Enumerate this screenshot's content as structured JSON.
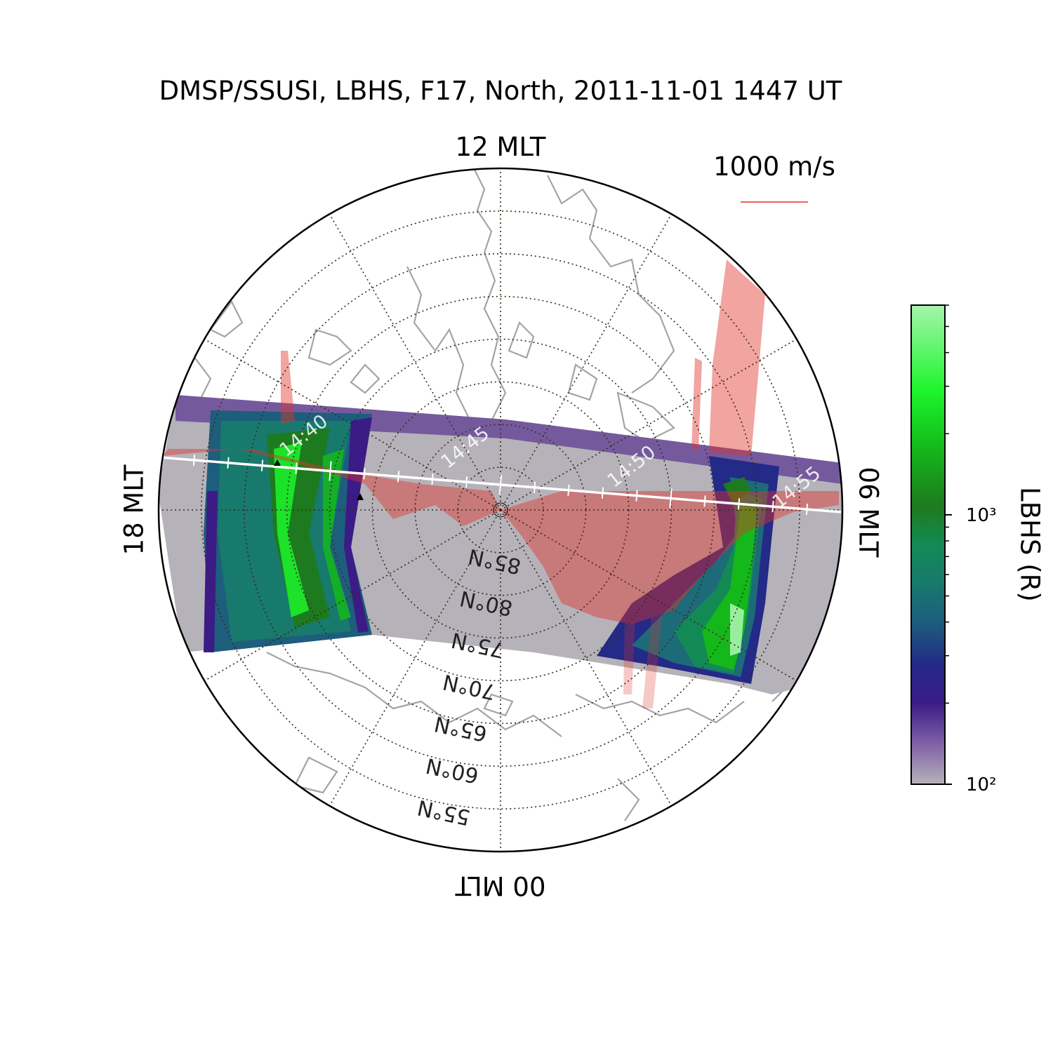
{
  "chart_data": {
    "type": "polar-map",
    "title": "DMSP/SSUSI, LBHS, F17, North, 2011-11-01 1447 UT",
    "mlt_labels": {
      "top": "12 MLT",
      "right": "06 MLT",
      "bottom": "00 MLT",
      "left": "18 MLT"
    },
    "lat_range": [
      50,
      90
    ],
    "lat_ticks": [
      {
        "lat": 85,
        "label": "85°N"
      },
      {
        "lat": 80,
        "label": "80°N"
      },
      {
        "lat": 75,
        "label": "75°N"
      },
      {
        "lat": 70,
        "label": "70°N"
      },
      {
        "lat": 65,
        "label": "65°N"
      },
      {
        "lat": 60,
        "label": "60°N"
      },
      {
        "lat": 55,
        "label": "55°N"
      }
    ],
    "mlt_grid_step_hours": 2,
    "grid": true,
    "velocity_scale": {
      "label": "1000 m/s",
      "color": "#e0352b"
    },
    "track_times": [
      "14:40",
      "14:45",
      "14:50",
      "14:55"
    ],
    "colorbar": {
      "label": "LBHS (R)",
      "scale": "log",
      "range": [
        100,
        6000
      ],
      "tick_labels": [
        "10²",
        "10³"
      ],
      "tick_values": [
        100,
        1000
      ],
      "colors": [
        "#b6b2b9",
        "#6a4699",
        "#3b1b86",
        "#232a88",
        "#1d6a78",
        "#178a63",
        "#1e7a1e",
        "#12c818",
        "#1cf52c",
        "#a5f5ad"
      ]
    }
  }
}
